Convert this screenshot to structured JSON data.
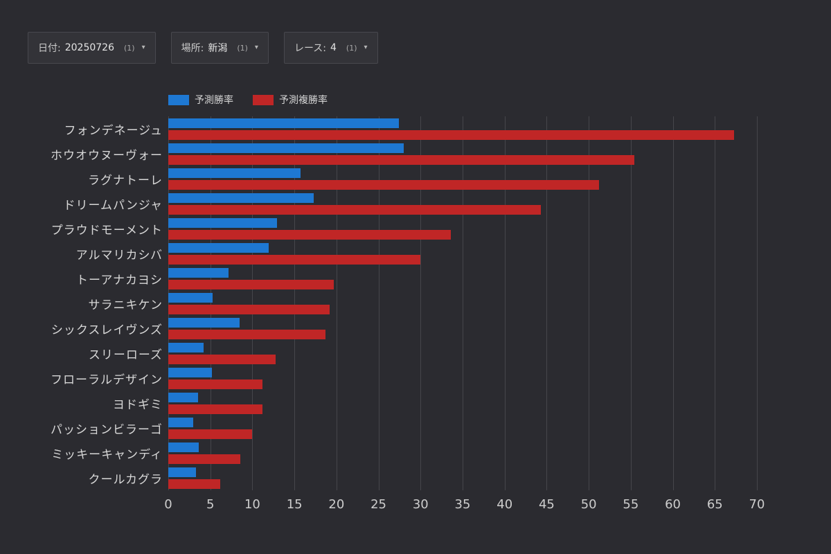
{
  "filters": [
    {
      "label": "日付:",
      "value": "20250726",
      "count": "(1)"
    },
    {
      "label": "場所:",
      "value": "新潟",
      "count": "(1)"
    },
    {
      "label": "レース:",
      "value": "4",
      "count": "(1)"
    }
  ],
  "legend": [
    {
      "label": "予測勝率",
      "color": "#1e78d2"
    },
    {
      "label": "予測複勝率",
      "color": "#c02626"
    }
  ],
  "chart_data": {
    "type": "bar",
    "orientation": "horizontal",
    "title": "",
    "xlabel": "",
    "ylabel": "",
    "xlim": [
      0,
      70
    ],
    "xticks": [
      0,
      5,
      10,
      15,
      20,
      25,
      30,
      35,
      40,
      45,
      50,
      55,
      60,
      65,
      70
    ],
    "grid": true,
    "legend_position": "top-left",
    "categories": [
      "フォンデネージュ",
      "ホウオウヌーヴォー",
      "ラグナトーレ",
      "ドリームパンジャ",
      "プラウドモーメント",
      "アルマリカシバ",
      "トーアナカヨシ",
      "サラニキケン",
      "シックスレイヴンズ",
      "スリーローズ",
      "フローラルデザイン",
      "ヨドギミ",
      "パッションビラーゴ",
      "ミッキーキャンディ",
      "クールカグラ"
    ],
    "series": [
      {
        "name": "予測勝率",
        "color": "#1e78d2",
        "values": [
          27.4,
          28.0,
          15.7,
          17.3,
          12.9,
          11.9,
          7.2,
          5.3,
          8.5,
          4.2,
          5.2,
          3.5,
          3.0,
          3.6,
          3.3
        ]
      },
      {
        "name": "予測複勝率",
        "color": "#c02626",
        "values": [
          67.3,
          55.4,
          51.2,
          44.3,
          33.6,
          30.0,
          19.7,
          19.2,
          18.7,
          12.8,
          11.2,
          11.2,
          10.0,
          8.6,
          6.2
        ]
      }
    ]
  }
}
